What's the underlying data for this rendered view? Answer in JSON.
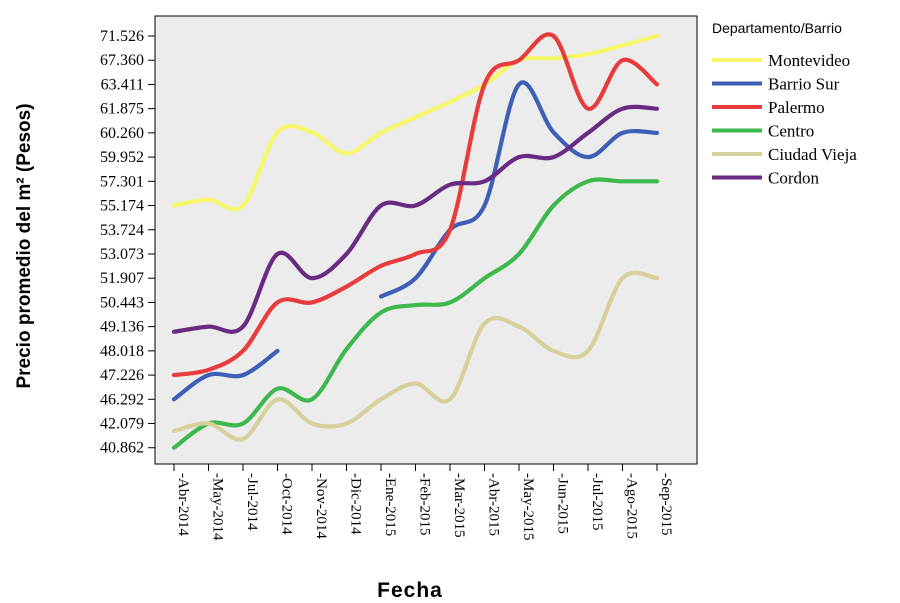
{
  "chart_data": {
    "type": "line",
    "xlabel": "Fecha",
    "ylabel": "Precio promedio del m² (Pesos)",
    "legend_title": "Departamento/Barrio",
    "legend_position": "right",
    "grid": false,
    "categories": [
      "Abr-2014",
      "May-2014",
      "Jul-2014",
      "Oct-2014",
      "Nov-2014",
      "Dic-2014",
      "Ene-2015",
      "Feb-2015",
      "Mar-2015",
      "Abr-2015",
      "May-2015",
      "Jun-2015",
      "Jul-2015",
      "Ago-2015",
      "Sep-2015"
    ],
    "y_ticks": [
      "71.526",
      "67.360",
      "63.411",
      "61.875",
      "60.260",
      "59.952",
      "57.301",
      "55.174",
      "53.724",
      "53.073",
      "51.907",
      "50.443",
      "49.136",
      "48.018",
      "47.226",
      "46.292",
      "42.079",
      "40.862"
    ],
    "series": [
      {
        "name": "Montevideo",
        "color": "#f7f76b",
        "values": [
          "55.174",
          "55.7",
          "55.174",
          "60.3",
          "60.3",
          "60.0",
          "60.26",
          "61.3",
          "62.3",
          "63.411",
          "67.360",
          "67.7",
          "68.4",
          "69.9",
          "71.526"
        ]
      },
      {
        "name": "Barrio Sur",
        "color": "#3e5eb8",
        "values": [
          "46.292",
          "47.226",
          "47.226",
          "48.018",
          null,
          null,
          "50.8",
          "51.907",
          "53.724",
          "55.174",
          "63.411",
          "60.3",
          "59.952",
          "60.260",
          "60.260"
        ]
      },
      {
        "name": "Palermo",
        "color": "#e83b3b",
        "values": [
          "47.226",
          "47.4",
          "48.018",
          "50.443",
          "50.443",
          "51.4",
          "52.5",
          "53.073",
          "53.724",
          "63.411",
          "67.360",
          "71.526",
          "61.875",
          "67.360",
          "63.411"
        ]
      },
      {
        "name": "Centro",
        "color": "#3cb84c",
        "values": [
          "40.862",
          "42.079",
          "42.079",
          "46.7",
          "46.292",
          "48.1",
          "49.9",
          "50.3",
          "50.443",
          "51.9",
          "53.073",
          "55.174",
          "57.301",
          "57.301",
          "57.301"
        ]
      },
      {
        "name": "Ciudad Vieja",
        "color": "#d6d09a",
        "values": [
          "41.7",
          "42.079",
          "41.3",
          "46.292",
          "42.079",
          "42.079",
          "46.292",
          "46.9",
          "46.292",
          "49.3",
          "49.136",
          "48.018",
          "48.018",
          "51.907",
          "51.907"
        ]
      },
      {
        "name": "Cordon",
        "color": "#6a2a84",
        "values": [
          "48.9",
          "49.136",
          "49.136",
          "53.073",
          "51.907",
          "53.073",
          "55.174",
          "55.174",
          "57.0",
          "57.301",
          "59.952",
          "59.952",
          "60.26",
          "61.875",
          "61.875"
        ]
      }
    ]
  }
}
